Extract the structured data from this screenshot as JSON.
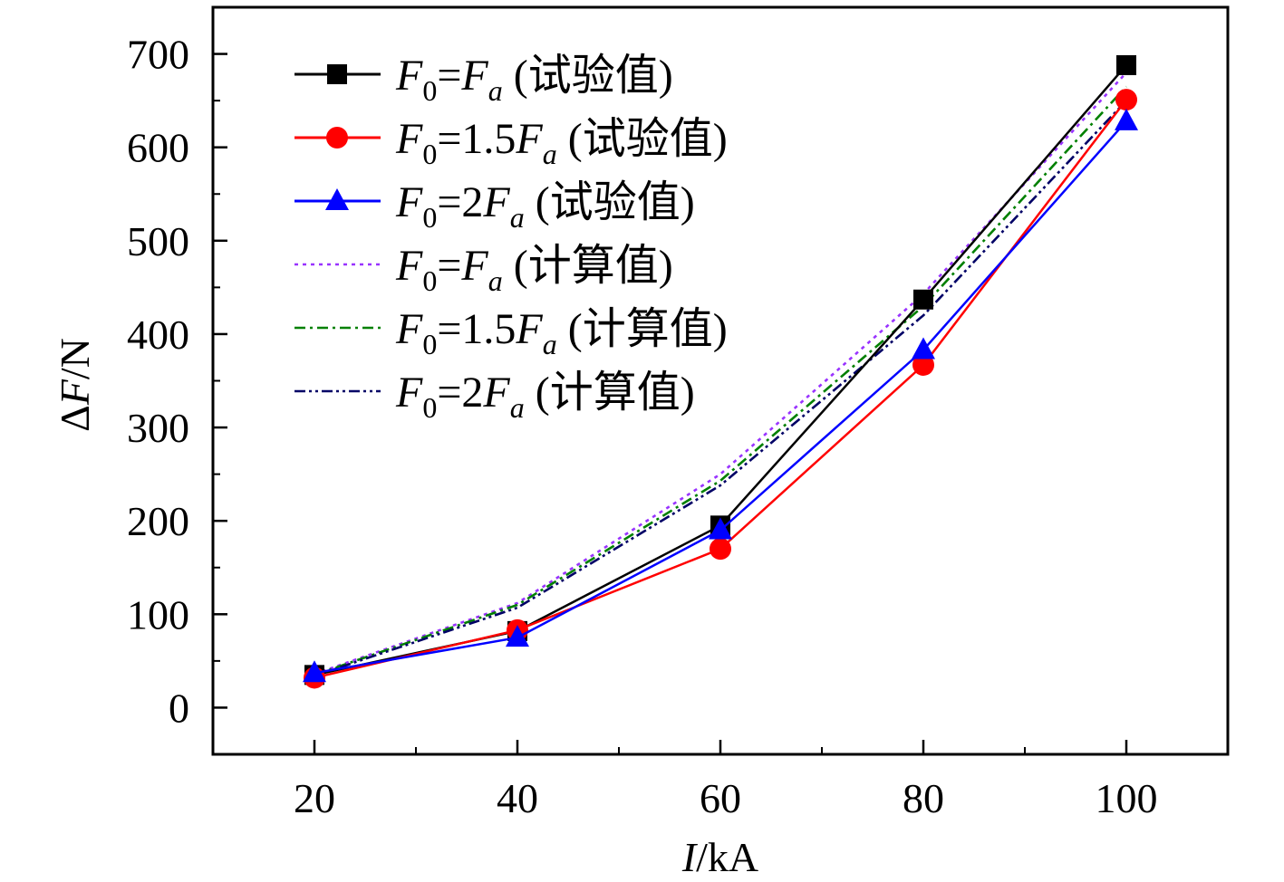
{
  "chart_data": {
    "type": "line",
    "x": [
      20,
      40,
      60,
      80,
      100
    ],
    "xlim": [
      10,
      110
    ],
    "ylim": [
      -50,
      750
    ],
    "xticks": [
      20,
      40,
      60,
      80,
      100
    ],
    "yticks": [
      0,
      100,
      200,
      300,
      400,
      500,
      600,
      700
    ],
    "xlabel": {
      "italic": "I",
      "rest": "/kA"
    },
    "ylabel": {
      "prefix": "Δ",
      "italic": "F",
      "rest": "/N"
    },
    "legend_position": "top-left",
    "series": [
      {
        "label": {
          "p1": "F",
          "sub1": "0",
          "p2": "=",
          "p3": "F",
          "sub2": "a",
          "p4": " (试验值)"
        },
        "values": [
          35,
          82,
          195,
          437,
          688
        ],
        "color": "#000000",
        "marker": "square",
        "line": "solid"
      },
      {
        "label": {
          "p1": "F",
          "sub1": "0",
          "p2": "=1.5",
          "p3": "F",
          "sub2": "a",
          "p4": " (试验值)"
        },
        "values": [
          32,
          83,
          170,
          367,
          651
        ],
        "color": "#ff0000",
        "marker": "circle",
        "line": "solid"
      },
      {
        "label": {
          "p1": "F",
          "sub1": "0",
          "p2": "=2",
          "p3": "F",
          "sub2": "a",
          "p4": " (试验值)"
        },
        "values": [
          37,
          75,
          190,
          383,
          628
        ],
        "color": "#0000ff",
        "marker": "triangle",
        "line": "solid"
      },
      {
        "label": {
          "p1": "F",
          "sub1": "0",
          "p2": "=",
          "p3": "F",
          "sub2": "a",
          "p4": " (计算值)"
        },
        "values": [
          36,
          112,
          250,
          443,
          680
        ],
        "color": "#9933ff",
        "marker": "none",
        "line": "dot"
      },
      {
        "label": {
          "p1": "F",
          "sub1": "0",
          "p2": "=1.5",
          "p3": "F",
          "sub2": "a",
          "p4": " (计算值)"
        },
        "values": [
          35,
          110,
          243,
          430,
          665
        ],
        "color": "#008000",
        "marker": "none",
        "line": "dashdot"
      },
      {
        "label": {
          "p1": "F",
          "sub1": "0",
          "p2": "=2",
          "p3": "F",
          "sub2": "a",
          "p4": " (计算值)"
        },
        "values": [
          34,
          107,
          238,
          420,
          650
        ],
        "color": "#000066",
        "marker": "none",
        "line": "dashdotdot"
      }
    ]
  }
}
